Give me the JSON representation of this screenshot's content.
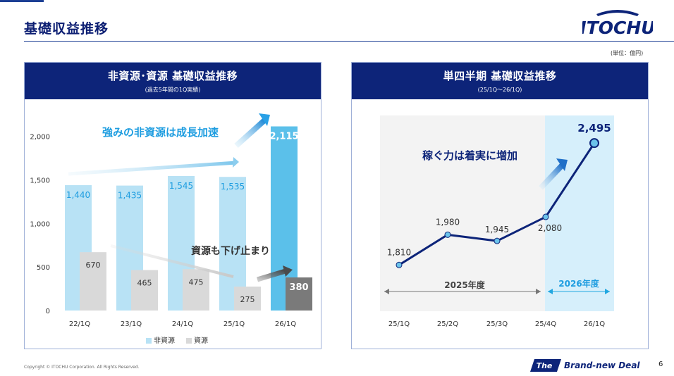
{
  "page": {
    "title": "基礎収益推移",
    "unit_note": "(単位：億円)",
    "copyright": "Copyright © ITOCHU Corporation. All Rights Reserved.",
    "page_number": "6",
    "tagline_the": "The",
    "tagline_rest": "Brand-new Deal",
    "logo_text": "ITOCHU",
    "brand_color": "#0d2479"
  },
  "left_panel": {
    "title": "非資源･資源 基礎収益推移",
    "subtitle": "(過去5年間の1Q実績)",
    "callout_growth": "強みの非資源は成長加速",
    "callout_resource": "資源も下げ止まり"
  },
  "right_panel": {
    "title": "単四半期 基礎収益推移",
    "subtitle": "(25/1Q～26/1Q)",
    "callout": "稼ぐ力は着実に増加",
    "fy2025_label": "2025年度",
    "fy2026_label": "2026年度"
  },
  "chart_data": [
    {
      "type": "bar",
      "categories": [
        "22/1Q",
        "23/1Q",
        "24/1Q",
        "25/1Q",
        "26/1Q"
      ],
      "series": [
        {
          "name": "非資源",
          "values": [
            1440,
            1435,
            1545,
            1535,
            2115
          ],
          "color": "#b8e2f5",
          "highlight_color": "#5bc0ea"
        },
        {
          "name": "資源",
          "values": [
            670,
            465,
            475,
            275,
            380
          ],
          "color": "#d9d9d9",
          "highlight_color": "#7a7a7a"
        }
      ],
      "value_labels_nonres": [
        "1,440",
        "1,435",
        "1,545",
        "1,535",
        "2,115"
      ],
      "value_labels_res": [
        "670",
        "465",
        "475",
        "275",
        "380"
      ],
      "yticks": [
        0,
        500,
        1000,
        1500,
        2000
      ],
      "ytick_labels": [
        "0",
        "500",
        "1,000",
        "1,500",
        "2,000"
      ],
      "ylim": [
        0,
        2200
      ],
      "legend": [
        "非資源",
        "資源"
      ],
      "legend_position": "bottom",
      "grid": false
    },
    {
      "type": "line",
      "categories": [
        "25/1Q",
        "25/2Q",
        "25/3Q",
        "25/4Q",
        "26/1Q"
      ],
      "values": [
        1810,
        1980,
        1945,
        2080,
        2495
      ],
      "value_labels": [
        "1,810",
        "1,980",
        "1,945",
        "2,080",
        "2,495"
      ],
      "line_color": "#0d2479",
      "point_color": "#6bc3ea",
      "ylim": [
        1550,
        2650
      ],
      "grid": false
    }
  ]
}
